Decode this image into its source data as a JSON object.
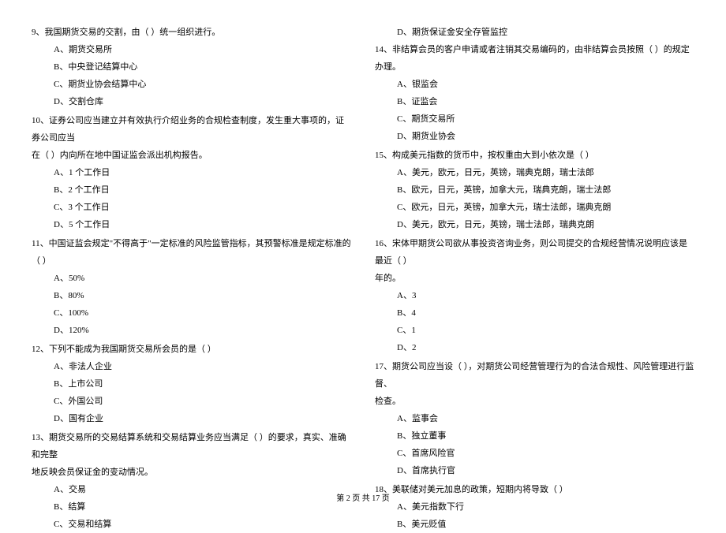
{
  "font": {
    "family": "SimSun",
    "body_size": 11,
    "footer_size": 10,
    "line_height": 2.0,
    "color": "#000000"
  },
  "background_color": "#ffffff",
  "left_column": {
    "q9": {
      "text": "9、我国期货交易的交割，由（    ）统一组织进行。",
      "options": {
        "A": "A、期货交易所",
        "B": "B、中央登记结算中心",
        "C": "C、期货业协会结算中心",
        "D": "D、交割仓库"
      }
    },
    "q10": {
      "text_line1": "10、证券公司应当建立并有效执行介绍业务的合规检查制度，发生重大事项的，证券公司应当",
      "text_line2": "在（    ）内向所在地中国证监会派出机构报告。",
      "options": {
        "A": "A、1 个工作日",
        "B": "B、2 个工作日",
        "C": "C、3 个工作日",
        "D": "D、5 个工作日"
      }
    },
    "q11": {
      "text": "11、中国证监会规定\"不得高于\"一定标准的风险监管指标，其预警标准是规定标准的（    ）",
      "options": {
        "A": "A、50%",
        "B": "B、80%",
        "C": "C、100%",
        "D": "D、120%"
      }
    },
    "q12": {
      "text": "12、下列不能成为我国期货交易所会员的是（    ）",
      "options": {
        "A": "A、非法人企业",
        "B": "B、上市公司",
        "C": "C、外国公司",
        "D": "D、国有企业"
      }
    },
    "q13": {
      "text_line1": "13、期货交易所的交易结算系统和交易结算业务应当满足（    ）的要求，真实、准确和完整",
      "text_line2": "地反映会员保证金的变动情况。",
      "options": {
        "A": "A、交易",
        "B": "B、结算",
        "C": "C、交易和结算"
      }
    }
  },
  "right_column": {
    "q13_d": "D、期货保证金安全存管监控",
    "q14": {
      "text": "14、非结算会员的客户申请或者注销其交易编码的，由非结算会员按照（    ）的规定办理。",
      "options": {
        "A": "A、银监会",
        "B": "B、证监会",
        "C": "C、期货交易所",
        "D": "D、期货业协会"
      }
    },
    "q15": {
      "text": "15、构成美元指数的货币中，按权重由大到小依次是（    ）",
      "options": {
        "A": "A、美元，欧元，日元，英镑，瑞典克朗，瑞士法郎",
        "B": "B、欧元，日元，英镑，加拿大元，瑞典克朗，瑞士法郎",
        "C": "C、欧元，日元，英镑，加拿大元，瑞士法郎，瑞典克朗",
        "D": "D、美元，欧元，日元，英镑，瑞士法郎，瑞典克朗"
      }
    },
    "q16": {
      "text_line1": "16、宋体甲期货公司欲从事投资咨询业务，则公司提交的合规经营情况说明应该是最近（    ）",
      "text_line2": "年的。",
      "options": {
        "A": "A、3",
        "B": "B、4",
        "C": "C、1",
        "D": "D、2"
      }
    },
    "q17": {
      "text_line1": "17、期货公司应当设（    ），对期货公司经营管理行为的合法合规性、风险管理进行监督、",
      "text_line2": "检查。",
      "options": {
        "A": "A、监事会",
        "B": "B、独立董事",
        "C": "C、首席风险官",
        "D": "D、首席执行官"
      }
    },
    "q18": {
      "text": "18、美联储对美元加息的政策，短期内将导致（    ）",
      "options": {
        "A": "A、美元指数下行",
        "B": "B、美元贬值"
      }
    }
  },
  "footer": {
    "text": "第 2 页 共 17 页"
  }
}
